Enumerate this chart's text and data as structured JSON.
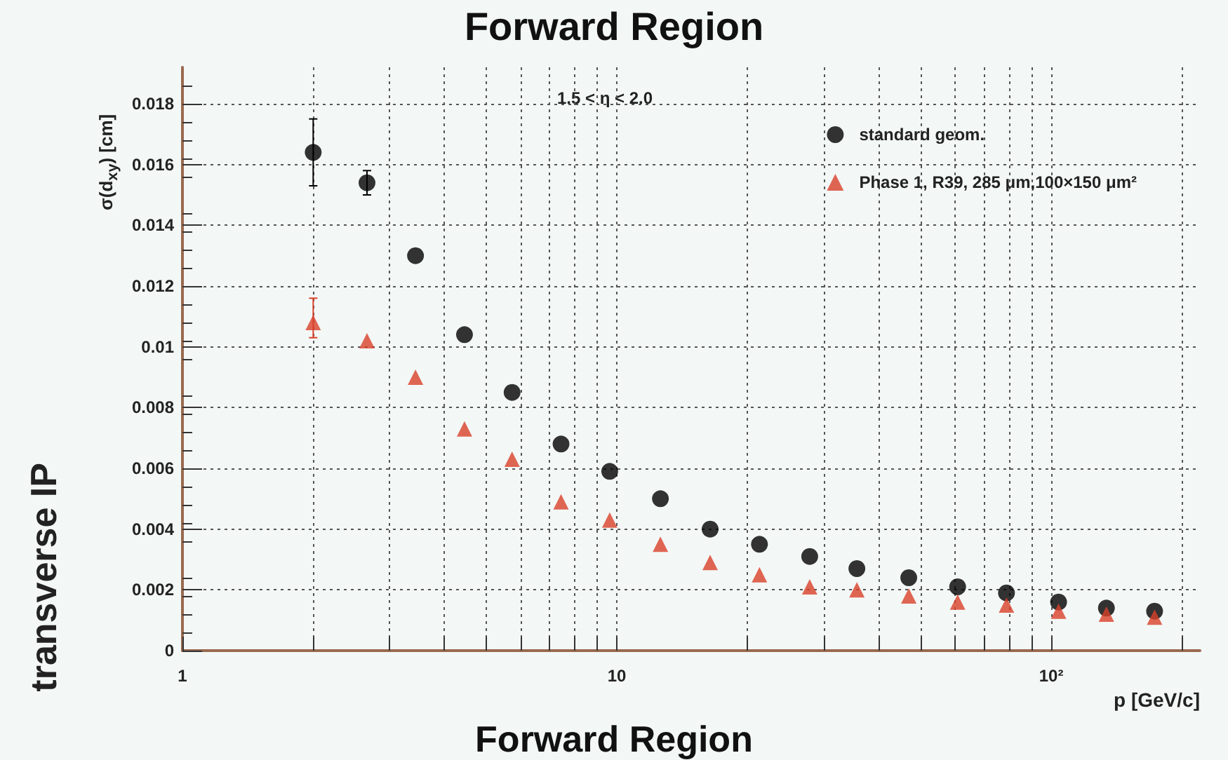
{
  "chart_data": {
    "type": "scatter",
    "title": "Forward Region",
    "xlabel": "p [GeV/c]",
    "ylabel": "σ(d$_{xy}$) [cm]",
    "legend_title": "1.5 < η < 2.0",
    "annotations": [
      "transverse IP",
      "Forward Region"
    ],
    "x": [
      2.0,
      2.66,
      3.44,
      4.46,
      5.74,
      7.44,
      9.63,
      12.6,
      16.4,
      21.3,
      27.8,
      35.7,
      47.0,
      60.9,
      78.9,
      104,
      134,
      173
    ],
    "series": [
      {
        "name": "standard geom.",
        "color": "#000000",
        "marker": "circle",
        "values": [
          0.0164,
          0.0154,
          0.013,
          0.0104,
          0.0085,
          0.0068,
          0.0059,
          0.005,
          0.004,
          0.0035,
          0.0031,
          0.0027,
          0.0024,
          0.0021,
          0.0019,
          0.0016,
          0.0014,
          0.0013
        ],
        "errors": [
          [
            0.0153,
            0.0175
          ],
          [
            0.015,
            0.0158
          ],
          null,
          null,
          null,
          null,
          null,
          null,
          null,
          null,
          null,
          null,
          null,
          null,
          null,
          null,
          null,
          null
        ]
      },
      {
        "name": "Phase 1, R39, 285 μm,100×150 μm²",
        "color": "#d9402a",
        "marker": "triangle",
        "values": [
          0.0108,
          0.0102,
          0.009,
          0.0073,
          0.0063,
          0.0049,
          0.0043,
          0.0035,
          0.0029,
          0.0025,
          0.0021,
          0.002,
          0.0018,
          0.0016,
          0.0015,
          0.0013,
          0.0012,
          0.0011
        ],
        "errors": [
          [
            0.0103,
            0.0116
          ],
          null,
          null,
          null,
          null,
          null,
          null,
          null,
          null,
          null,
          null,
          null,
          null,
          null,
          null,
          null,
          null,
          null
        ]
      }
    ],
    "log": "x",
    "xlim": [
      1,
      220
    ],
    "xticks": [
      1,
      {
        "value": 2,
        "label": null
      },
      {
        "value": 3,
        "label": null
      },
      {
        "value": 4,
        "label": null
      },
      {
        "value": 5,
        "label": null
      },
      {
        "value": 6,
        "label": null
      },
      {
        "value": 7,
        "label": null
      },
      {
        "value": 8,
        "label": null
      },
      {
        "value": 9,
        "label": null
      },
      10,
      {
        "value": 20,
        "label": null
      },
      {
        "value": 30,
        "label": null
      },
      {
        "value": 40,
        "label": null
      },
      {
        "value": 50,
        "label": null
      },
      {
        "value": 60,
        "label": null
      },
      {
        "value": 70,
        "label": null
      },
      {
        "value": 80,
        "label": null
      },
      {
        "value": 90,
        "label": null
      },
      {
        "value": 100,
        "label": "10²"
      },
      {
        "value": 200,
        "label": null
      }
    ],
    "ylim": [
      0,
      0.0192
    ],
    "yticks": [
      0,
      0.002,
      0.004,
      0.006,
      0.008,
      {
        "value": 0.01,
        "label": "0.01"
      },
      0.012,
      0.014,
      0.016,
      0.018
    ],
    "grid": true,
    "legend": "top right"
  }
}
